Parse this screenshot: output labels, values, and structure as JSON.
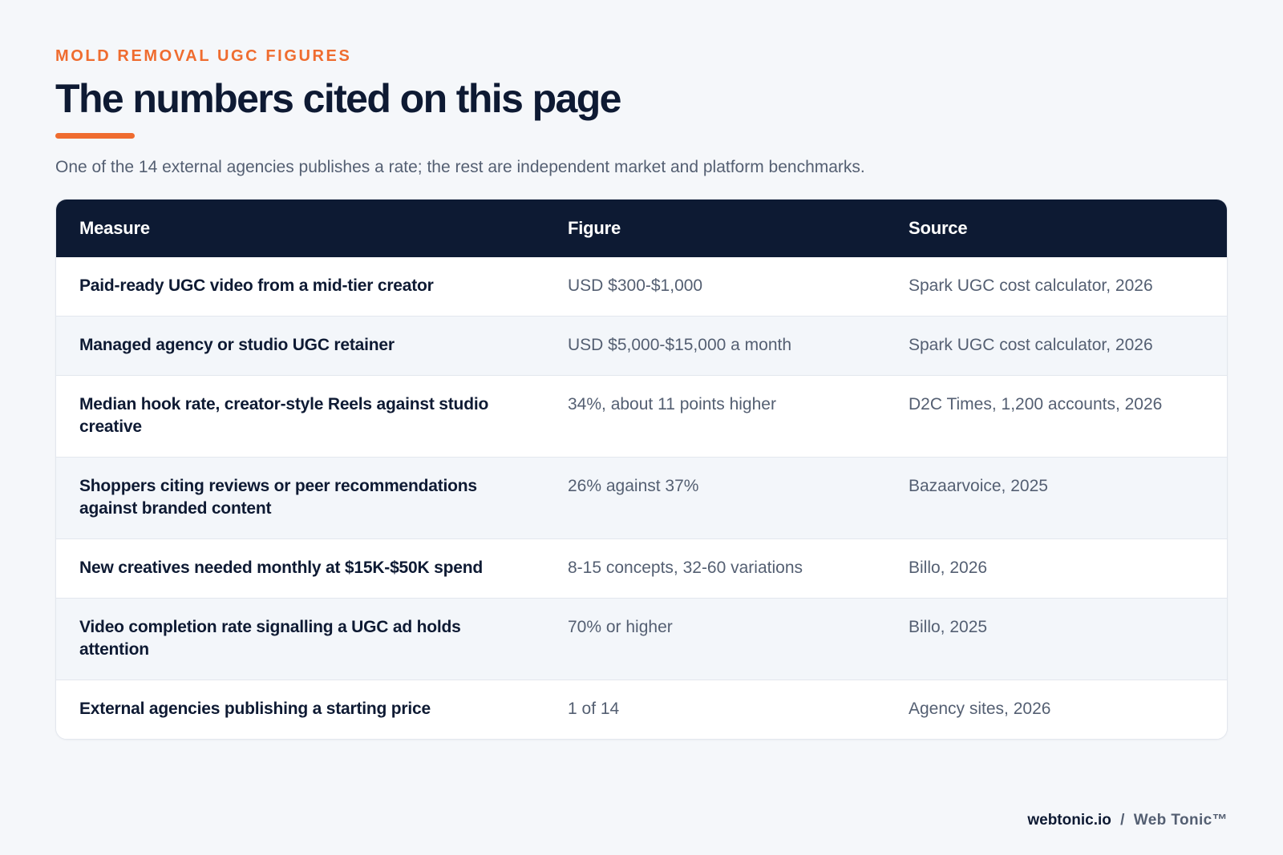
{
  "header": {
    "eyebrow": "MOLD REMOVAL UGC FIGURES",
    "title": "The numbers cited on this page",
    "subtitle": "One of the 14 external agencies publishes a rate; the rest are independent market and platform benchmarks."
  },
  "table": {
    "columns": [
      "Measure",
      "Figure",
      "Source"
    ],
    "rows": [
      {
        "measure": "Paid-ready UGC video from a mid-tier creator",
        "figure": "USD $300-$1,000",
        "source": "Spark UGC cost calculator, 2026"
      },
      {
        "measure": "Managed agency or studio UGC retainer",
        "figure": "USD $5,000-$15,000 a month",
        "source": "Spark UGC cost calculator, 2026"
      },
      {
        "measure": "Median hook rate, creator-style Reels against studio creative",
        "figure": "34%, about 11 points higher",
        "source": "D2C Times, 1,200 accounts, 2026"
      },
      {
        "measure": "Shoppers citing reviews or peer recommendations against branded content",
        "figure": "26% against 37%",
        "source": "Bazaarvoice, 2025"
      },
      {
        "measure": "New creatives needed monthly at $15K-$50K spend",
        "figure": "8-15 concepts, 32-60 variations",
        "source": "Billo, 2026"
      },
      {
        "measure": "Video completion rate signalling a UGC ad holds attention",
        "figure": "70% or higher",
        "source": "Billo, 2025"
      },
      {
        "measure": "External agencies publishing a starting price",
        "figure": "1 of 14",
        "source": "Agency sites, 2026"
      }
    ]
  },
  "footer": {
    "domain": "webtonic.io",
    "separator": "/",
    "brand": "Web Tonic™"
  },
  "colors": {
    "accent": "#ef6c2f",
    "navy": "#0d1a33",
    "muted_text": "#545f72",
    "background": "#f5f7fa"
  }
}
